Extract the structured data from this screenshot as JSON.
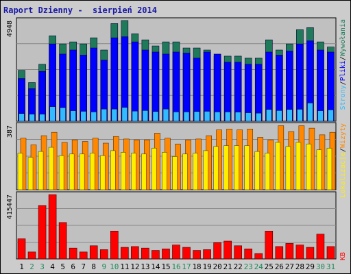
{
  "title": "Raport Dzienny -  sierpień 2014",
  "colors": {
    "background": "#cccccc",
    "plot_background": "#c0c0c0",
    "title": "#1a1aa6",
    "gridline": "#888888",
    "weekday_label": "#000000",
    "weekend_label": "#1f8a5a"
  },
  "legend_sep": "/",
  "chart_data": [
    {
      "type": "bar",
      "panel": "top",
      "ylabel_value": "4948",
      "ymax": 4948,
      "categories": [
        "1",
        "2",
        "3",
        "4",
        "5",
        "6",
        "7",
        "8",
        "9",
        "10",
        "11",
        "12",
        "13",
        "14",
        "15",
        "16",
        "17",
        "18",
        "19",
        "20",
        "21",
        "22",
        "23",
        "24",
        "25",
        "26",
        "27",
        "28",
        "29",
        "30",
        "31"
      ],
      "weekend_days": [
        "2",
        "3",
        "9",
        "10",
        "16",
        "17",
        "23",
        "24",
        "30",
        "31"
      ],
      "series": [
        {
          "name": "Wywołania",
          "color": "#1f7a5a",
          "values": [
            2500,
            1900,
            2800,
            4200,
            3800,
            3900,
            3800,
            4100,
            3500,
            4800,
            4950,
            4300,
            4000,
            3700,
            3900,
            3900,
            3600,
            3600,
            3500,
            3200,
            3200,
            3200,
            3100,
            3100,
            4000,
            3500,
            3800,
            4500,
            4600,
            3900,
            3650
          ]
        },
        {
          "name": "Pliki",
          "color": "#0000ff",
          "values": [
            2100,
            1600,
            2450,
            3800,
            3300,
            3500,
            3250,
            3600,
            3000,
            4100,
            4150,
            3900,
            3500,
            3400,
            3300,
            3400,
            3350,
            3100,
            3400,
            3300,
            2900,
            2900,
            2800,
            2800,
            3400,
            3250,
            3450,
            3800,
            3950,
            3500,
            3400
          ]
        },
        {
          "name": "Strony",
          "color": "#33bbff",
          "values": [
            380,
            350,
            350,
            720,
            670,
            520,
            490,
            460,
            600,
            600,
            680,
            500,
            530,
            480,
            600,
            460,
            460,
            480,
            490,
            460,
            460,
            450,
            420,
            400,
            580,
            530,
            580,
            590,
            900,
            520,
            560
          ]
        }
      ]
    },
    {
      "type": "bar",
      "panel": "middle",
      "ylabel_value": "387",
      "ymax": 387,
      "categories": [
        "1",
        "2",
        "3",
        "4",
        "5",
        "6",
        "7",
        "8",
        "9",
        "10",
        "11",
        "12",
        "13",
        "14",
        "15",
        "16",
        "17",
        "18",
        "19",
        "20",
        "21",
        "22",
        "23",
        "24",
        "25",
        "26",
        "27",
        "28",
        "29",
        "30",
        "31"
      ],
      "series": [
        {
          "name": "Wizyty",
          "color": "#ff8800",
          "values": [
            310,
            270,
            325,
            345,
            285,
            300,
            290,
            310,
            280,
            320,
            305,
            300,
            300,
            340,
            310,
            275,
            300,
            305,
            325,
            360,
            365,
            360,
            365,
            315,
            300,
            385,
            350,
            385,
            370,
            330,
            345
          ]
        },
        {
          "name": "Lokalizacje",
          "color": "#ffee00",
          "values": [
            220,
            195,
            230,
            255,
            205,
            215,
            215,
            220,
            205,
            235,
            225,
            220,
            215,
            250,
            225,
            200,
            215,
            220,
            235,
            260,
            265,
            265,
            265,
            230,
            220,
            285,
            260,
            285,
            275,
            240,
            250
          ]
        }
      ]
    },
    {
      "type": "bar",
      "panel": "bottom",
      "ylabel_value": "415447",
      "ymax": 415447,
      "categories": [
        "1",
        "2",
        "3",
        "4",
        "5",
        "6",
        "7",
        "8",
        "9",
        "10",
        "11",
        "12",
        "13",
        "14",
        "15",
        "16",
        "17",
        "18",
        "19",
        "20",
        "21",
        "22",
        "23",
        "24",
        "25",
        "26",
        "27",
        "28",
        "29",
        "30",
        "31"
      ],
      "series": [
        {
          "name": "KB",
          "color": "#ff0000",
          "values": [
            130000,
            45000,
            345000,
            415000,
            235000,
            70000,
            45000,
            85000,
            60000,
            180000,
            75000,
            80000,
            70000,
            55000,
            65000,
            90000,
            75000,
            55000,
            60000,
            105000,
            115000,
            85000,
            65000,
            35000,
            180000,
            80000,
            100000,
            90000,
            75000,
            160000,
            80000
          ]
        }
      ]
    }
  ],
  "legend_top": [
    "Wywołania",
    "Pliki",
    "Strony"
  ],
  "legend_middle": [
    "Wizyty",
    "Lokalizacje"
  ],
  "legend_bottom": [
    "KB"
  ]
}
